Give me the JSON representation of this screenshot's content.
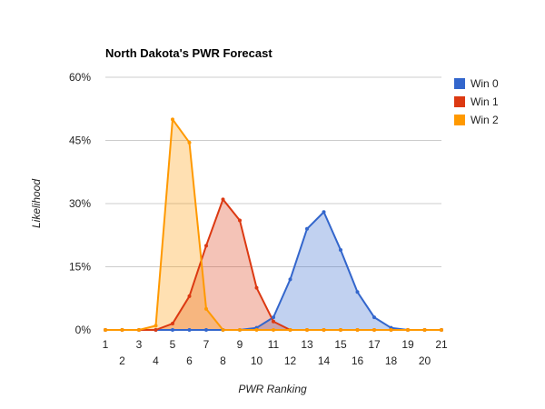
{
  "chart_data": {
    "type": "area",
    "title": "North Dakota's PWR Forecast",
    "xlabel": "PWR Ranking",
    "ylabel": "Likelihood",
    "x": [
      1,
      2,
      3,
      4,
      5,
      6,
      7,
      8,
      9,
      10,
      11,
      12,
      13,
      14,
      15,
      16,
      17,
      18,
      19,
      20,
      21
    ],
    "x_tick_labels": [
      "1",
      "2",
      "3",
      "4",
      "5",
      "6",
      "7",
      "8",
      "9",
      "10",
      "11",
      "12",
      "13",
      "14",
      "15",
      "16",
      "17",
      "18",
      "19",
      "20",
      "21"
    ],
    "xlim": [
      1,
      21
    ],
    "ylim": [
      0,
      60
    ],
    "y_ticks": [
      0,
      15,
      30,
      45,
      60
    ],
    "y_tick_labels": [
      "0%",
      "15%",
      "30%",
      "45%",
      "60%"
    ],
    "grid": true,
    "legend_position": "right",
    "series": [
      {
        "name": "Win 0",
        "color": "#3366cc",
        "values": [
          0,
          0,
          0,
          0,
          0,
          0,
          0,
          0,
          0,
          0.5,
          3,
          12,
          24,
          28,
          19,
          9,
          3,
          0.5,
          0,
          0,
          0
        ]
      },
      {
        "name": "Win 1",
        "color": "#dc3912",
        "values": [
          0,
          0,
          0,
          0,
          1.5,
          8,
          20,
          31,
          26,
          10,
          2,
          0,
          0,
          0,
          0,
          0,
          0,
          0,
          0,
          0,
          0
        ]
      },
      {
        "name": "Win 2",
        "color": "#ff9900",
        "values": [
          0,
          0,
          0,
          1,
          50,
          44.5,
          5,
          0,
          0,
          0,
          0,
          0,
          0,
          0,
          0,
          0,
          0,
          0,
          0,
          0,
          0
        ]
      }
    ]
  }
}
